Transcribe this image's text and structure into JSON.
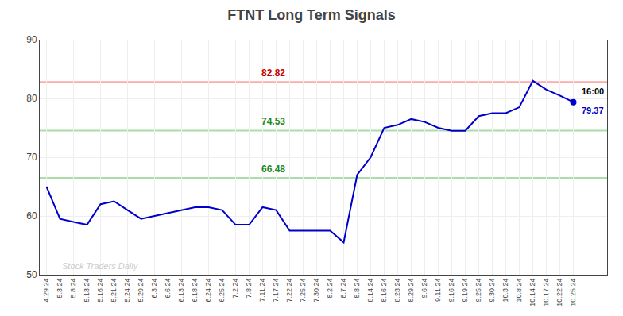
{
  "chart_data": {
    "type": "line",
    "title": "FTNT Long Term Signals",
    "color": "#0000cc",
    "categories": [
      "4.29.24",
      "5.3.24",
      "5.8.24",
      "5.13.24",
      "5.16.24",
      "5.21.24",
      "5.24.24",
      "5.29.24",
      "6.3.24",
      "6.6.24",
      "6.13.24",
      "6.18.24",
      "6.24.24",
      "6.25.24",
      "7.2.24",
      "7.8.24",
      "7.11.24",
      "7.17.24",
      "7.22.24",
      "7.25.24",
      "7.30.24",
      "8.2.24",
      "8.7.24",
      "8.8.24",
      "8.14.24",
      "8.16.24",
      "8.23.24",
      "8.29.24",
      "9.6.24",
      "9.11.24",
      "9.16.24",
      "9.19.24",
      "9.25.24",
      "9.30.24",
      "10.3.24",
      "10.8.24",
      "10.14.24",
      "10.17.24",
      "10.22.24",
      "10.25.24"
    ],
    "values": [
      65.0,
      59.5,
      59.0,
      58.5,
      62.0,
      62.5,
      61.0,
      59.5,
      60.0,
      60.5,
      61.0,
      61.5,
      61.5,
      61.0,
      58.5,
      58.5,
      61.5,
      61.0,
      57.5,
      57.5,
      57.5,
      57.5,
      55.5,
      67.0,
      70.0,
      75.0,
      75.5,
      76.5,
      76.0,
      75.0,
      74.5,
      74.5,
      77.0,
      77.5,
      77.5,
      78.5,
      83.0,
      81.5,
      80.5,
      79.37
    ],
    "ylim": [
      50,
      90
    ],
    "yticks": [
      50,
      60,
      70,
      80,
      90
    ],
    "grid": true,
    "hlines": [
      {
        "value": 82.82,
        "label": "82.82",
        "color": "#ffaaaa",
        "label_color": "#cc0000"
      },
      {
        "value": 74.53,
        "label": "74.53",
        "color": "#aaddaa",
        "label_color": "#228822"
      },
      {
        "value": 66.48,
        "label": "66.48",
        "color": "#aaddaa",
        "label_color": "#228822"
      }
    ],
    "last_point_labels": [
      {
        "text": "16:00",
        "color": "#000000"
      },
      {
        "text": "79.37",
        "color": "#0000cc"
      }
    ],
    "watermark": {
      "text": "Stock Traders Daily",
      "color": "#cccccc"
    }
  }
}
